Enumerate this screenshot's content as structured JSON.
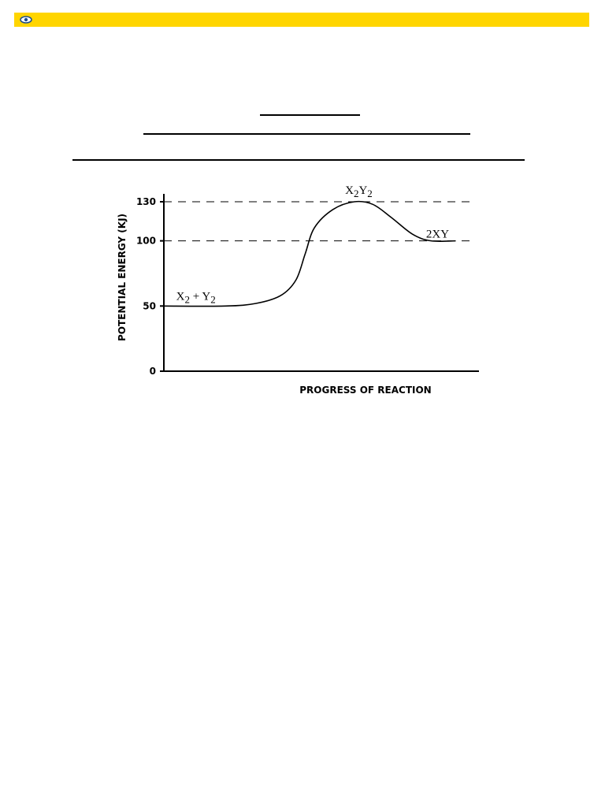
{
  "header": {
    "icon": "eye-icon",
    "bar_color": "#ffd500"
  },
  "chart_data": {
    "type": "line",
    "title": "",
    "xlabel": "PROGRESS OF REACTION",
    "ylabel": "POTENTIAL ENERGY (KJ)",
    "ylim": [
      0,
      130
    ],
    "yticks": [
      "0",
      "50",
      "100",
      "130"
    ],
    "grid": false,
    "reference_lines": [
      130,
      100
    ],
    "series": [
      {
        "values": [
          {
            "x": 0.0,
            "y": 50
          },
          {
            "x": 0.2,
            "y": 50
          },
          {
            "x": 0.3,
            "y": 52
          },
          {
            "x": 0.38,
            "y": 58
          },
          {
            "x": 0.43,
            "y": 70
          },
          {
            "x": 0.46,
            "y": 90
          },
          {
            "x": 0.49,
            "y": 110
          },
          {
            "x": 0.55,
            "y": 124
          },
          {
            "x": 0.62,
            "y": 130
          },
          {
            "x": 0.68,
            "y": 128
          },
          {
            "x": 0.74,
            "y": 118
          },
          {
            "x": 0.81,
            "y": 105
          },
          {
            "x": 0.87,
            "y": 100
          },
          {
            "x": 0.95,
            "y": 100
          }
        ]
      }
    ],
    "annotations": [
      {
        "name": "reactants",
        "main_a": "X",
        "sub_a": "2",
        "join": " + Y",
        "sub_b": "2",
        "x": 0.04,
        "y": 50
      },
      {
        "name": "activated-complex",
        "main_a": "X",
        "sub_a": "2",
        "join": "Y",
        "sub_b": "2",
        "x": 0.59,
        "y": 130
      },
      {
        "name": "products",
        "main_a": "2XY",
        "sub_a": "",
        "join": "",
        "sub_b": "",
        "x": 0.91,
        "y": 100
      }
    ]
  }
}
